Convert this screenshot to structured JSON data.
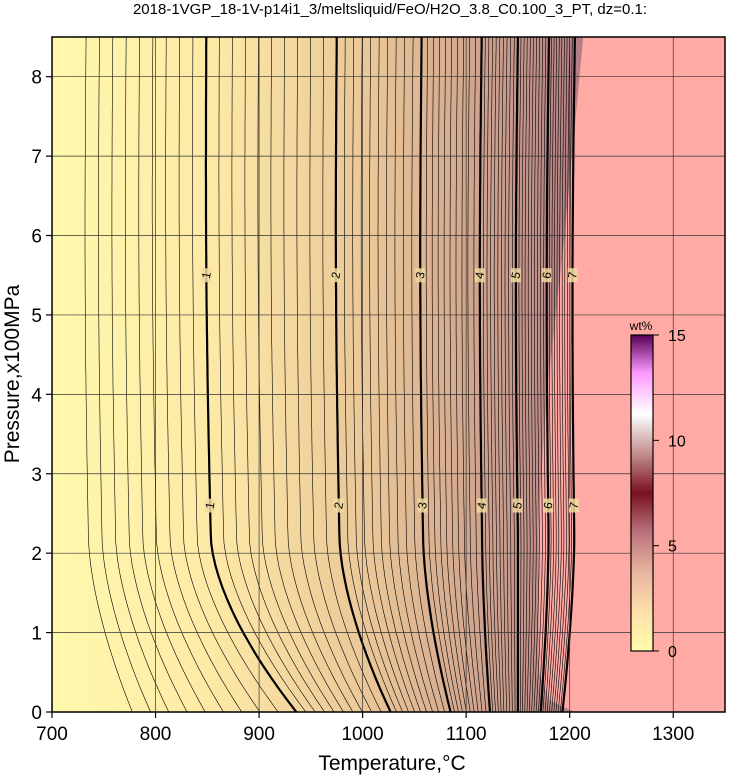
{
  "chart_data": {
    "type": "contour",
    "title": "2018-1VGP_18-1V-p14i1_3/meltsliquid/FeO/H2O_3.8_C0.100_3_PT, dz=0.1:",
    "xlabel": "Temperature,°C",
    "ylabel": "Pressure,x100MPa",
    "xlim": [
      700,
      1350
    ],
    "ylim": [
      0,
      8.5
    ],
    "x_ticks": [
      "700",
      "800",
      "900",
      "1000",
      "1100",
      "1200",
      "1300"
    ],
    "y_ticks": [
      "0",
      "1",
      "2",
      "3",
      "4",
      "5",
      "6",
      "7",
      "8"
    ],
    "grid": true,
    "contour_interval": 0.1,
    "labeled_contours": [
      {
        "label": "1",
        "value": 1,
        "T_at_high_P": 849,
        "T_at_low_P": 936
      },
      {
        "label": "2",
        "value": 2,
        "T_at_high_P": 975,
        "T_at_low_P": 1027
      },
      {
        "label": "3",
        "value": 3,
        "T_at_high_P": 1057,
        "T_at_low_P": 1085
      },
      {
        "label": "4",
        "value": 4,
        "T_at_high_P": 1115,
        "T_at_low_P": 1123
      },
      {
        "label": "5",
        "value": 5,
        "T_at_high_P": 1150,
        "T_at_low_P": 1150
      },
      {
        "label": "6",
        "value": 6,
        "T_at_high_P": 1180,
        "T_at_low_P": 1172
      },
      {
        "label": "7",
        "value": 7,
        "T_at_high_P": 1205,
        "T_at_low_P": 1193
      }
    ],
    "liquidus_boundary": [
      [
        1213,
        8.5
      ],
      [
        1195,
        6.0
      ],
      [
        1178,
        4.0
      ],
      [
        1170,
        2.5
      ],
      [
        1170,
        0.5
      ],
      [
        1180,
        0.15
      ],
      [
        1205,
        0.0
      ]
    ],
    "no_data_region_color": "#ffaaa5",
    "colorbar": {
      "unit": "wt%",
      "ticks": [
        "0",
        "5",
        "10",
        "15"
      ],
      "range": [
        0,
        15
      ],
      "colors": [
        "#fffcaa",
        "#ffd9a8",
        "#ba7f7c",
        "#7a0012",
        "#ffffff",
        "#ff99ff",
        "#550055"
      ]
    }
  }
}
